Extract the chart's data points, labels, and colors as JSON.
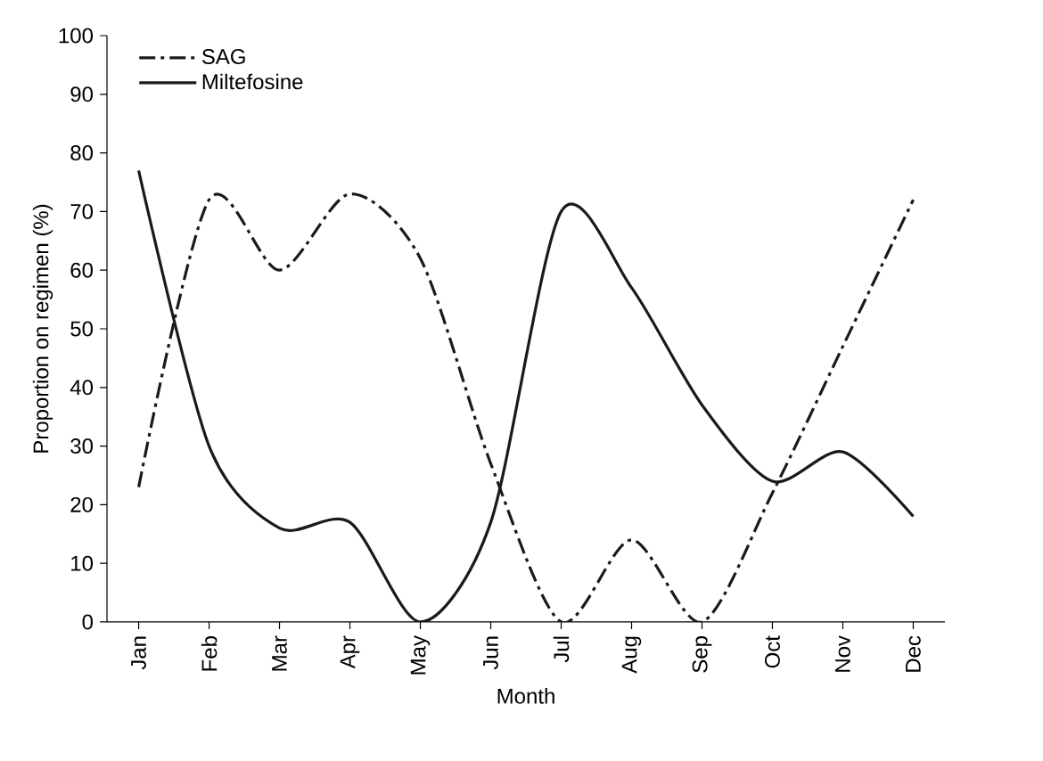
{
  "chart_data": {
    "type": "line",
    "xlabel": "Month",
    "ylabel": "Proportion on regimen (%)",
    "categories": [
      "Jan",
      "Feb",
      "Mar",
      "Apr",
      "May",
      "Jun",
      "Jul",
      "Aug",
      "Sep",
      "Oct",
      "Nov",
      "Dec"
    ],
    "series": [
      {
        "name": "SAG",
        "color": "#1a1a1a",
        "line_style": "dashed",
        "values": [
          23,
          72,
          60,
          73,
          62,
          27,
          0,
          14,
          0,
          22,
          47,
          72
        ]
      },
      {
        "name": "Miltefosine",
        "color": "#1a1a1a",
        "line_style": "solid",
        "values": [
          77,
          30,
          16,
          17,
          0,
          17,
          70,
          57,
          37,
          24,
          29,
          18
        ]
      }
    ],
    "ylim": [
      0,
      100
    ],
    "yticks": [
      0,
      10,
      20,
      30,
      40,
      50,
      60,
      70,
      80,
      90,
      100
    ],
    "legend": "top left",
    "marker": "none"
  }
}
